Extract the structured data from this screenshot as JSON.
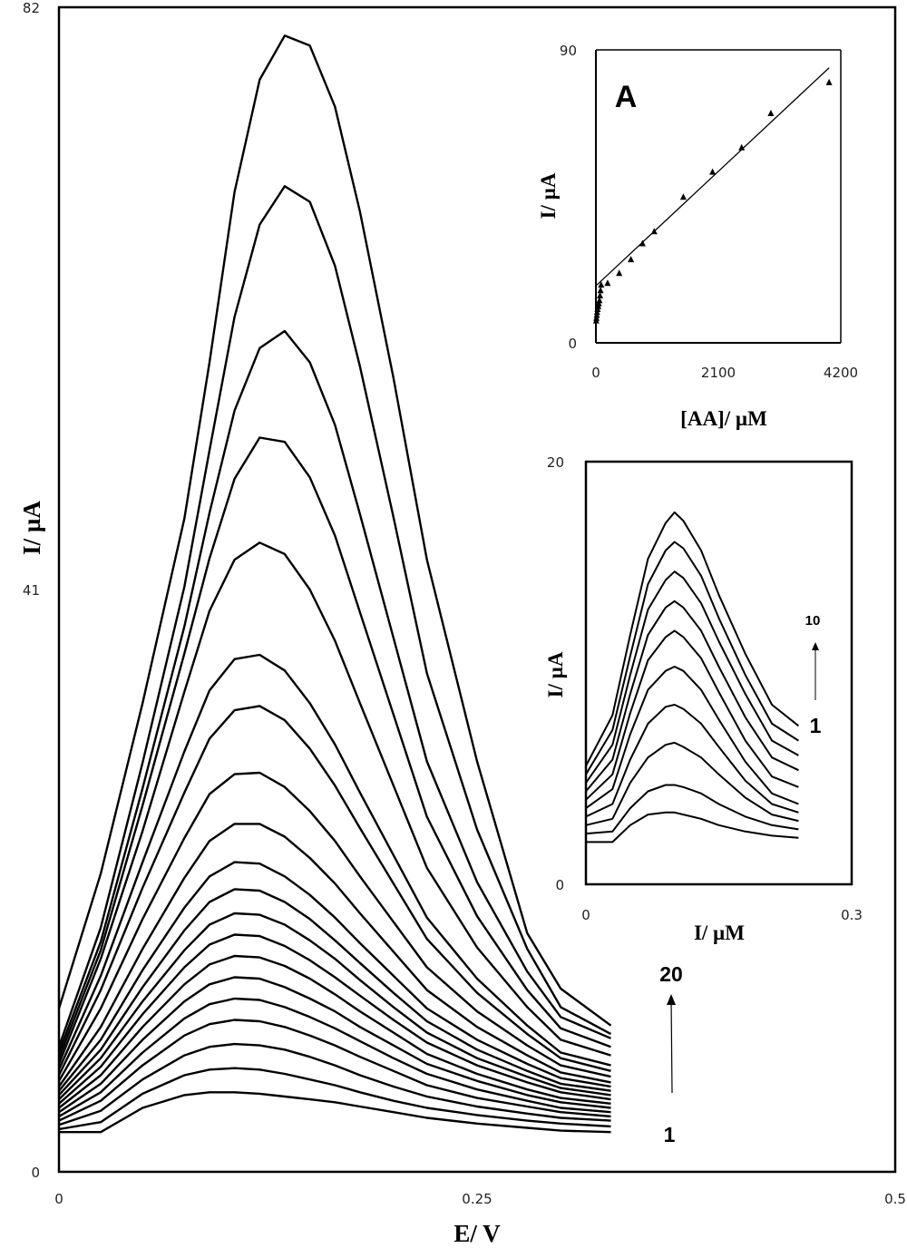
{
  "chart_data": [
    {
      "type": "line",
      "id": "main",
      "xlabel": "E/ V",
      "ylabel": "I/ µA",
      "xlim": [
        0,
        0.5
      ],
      "ylim": [
        0,
        82
      ],
      "xticks": [
        "0",
        "0.25",
        "0.5"
      ],
      "yticks": [
        "0",
        "41",
        "82"
      ],
      "annotations": {
        "first": "1",
        "last": "20"
      },
      "x": [
        0,
        0.025,
        0.05,
        0.075,
        0.09,
        0.105,
        0.12,
        0.135,
        0.15,
        0.165,
        0.18,
        0.2,
        0.22,
        0.25,
        0.28,
        0.3,
        0.33
      ],
      "series": [
        {
          "values": [
            2.8,
            2.8,
            4.5,
            5.4,
            5.6,
            5.6,
            5.5,
            5.3,
            5.1,
            4.9,
            4.6,
            4.2,
            3.8,
            3.4,
            3.1,
            2.9,
            2.8
          ]
        },
        {
          "values": [
            3.0,
            3.5,
            5.5,
            6.8,
            7.2,
            7.3,
            7.2,
            6.9,
            6.5,
            6.1,
            5.6,
            5.0,
            4.5,
            4.0,
            3.6,
            3.4,
            3.2
          ]
        },
        {
          "values": [
            3.3,
            4.3,
            6.5,
            8.2,
            8.8,
            9.0,
            8.9,
            8.6,
            8.1,
            7.5,
            6.8,
            6.0,
            5.3,
            4.6,
            4.1,
            3.8,
            3.6
          ]
        },
        {
          "values": [
            3.6,
            5.0,
            7.5,
            9.6,
            10.4,
            10.7,
            10.6,
            10.2,
            9.6,
            8.9,
            8.1,
            7.1,
            6.1,
            5.2,
            4.6,
            4.2,
            3.9
          ]
        },
        {
          "values": [
            3.9,
            5.6,
            8.4,
            10.8,
            11.8,
            12.2,
            12.1,
            11.6,
            10.9,
            10.1,
            9.2,
            8.0,
            6.9,
            5.8,
            5.0,
            4.5,
            4.2
          ]
        },
        {
          "values": [
            4.2,
            6.2,
            9.3,
            12.0,
            13.2,
            13.7,
            13.6,
            13.0,
            12.2,
            11.3,
            10.2,
            8.9,
            7.6,
            6.4,
            5.4,
            4.9,
            4.5
          ]
        },
        {
          "values": [
            4.5,
            6.8,
            10.2,
            13.2,
            14.6,
            15.2,
            15.1,
            14.5,
            13.6,
            12.5,
            11.3,
            9.8,
            8.3,
            6.9,
            5.8,
            5.2,
            4.8
          ]
        },
        {
          "values": [
            4.8,
            7.4,
            11.1,
            14.4,
            16.0,
            16.7,
            16.6,
            15.9,
            14.9,
            13.7,
            12.4,
            10.7,
            9.1,
            7.5,
            6.3,
            5.6,
            5.1
          ]
        },
        {
          "values": [
            5.1,
            8.0,
            12.0,
            15.6,
            17.4,
            18.2,
            18.1,
            17.4,
            16.3,
            15.0,
            13.5,
            11.6,
            9.8,
            8.0,
            6.7,
            5.9,
            5.4
          ]
        },
        {
          "values": [
            5.4,
            8.6,
            13.0,
            17.0,
            19.0,
            19.9,
            19.8,
            19.0,
            17.8,
            16.3,
            14.7,
            12.6,
            10.6,
            8.6,
            7.1,
            6.2,
            5.7
          ]
        },
        {
          "values": [
            5.7,
            9.3,
            14.2,
            18.6,
            20.8,
            21.8,
            21.7,
            20.8,
            19.5,
            17.9,
            16.1,
            13.8,
            11.5,
            9.3,
            7.6,
            6.6,
            6.0
          ]
        },
        {
          "values": [
            6.0,
            10.2,
            15.7,
            20.7,
            23.3,
            24.5,
            24.5,
            23.6,
            22.1,
            20.3,
            18.2,
            15.5,
            12.8,
            10.2,
            8.2,
            7.0,
            6.3
          ]
        },
        {
          "values": [
            6.4,
            11.5,
            17.8,
            23.5,
            26.6,
            28.0,
            28.1,
            27.1,
            25.4,
            23.3,
            20.8,
            17.6,
            14.4,
            11.3,
            8.9,
            7.5,
            6.7
          ]
        },
        {
          "values": [
            6.8,
            12.8,
            20.0,
            26.7,
            30.5,
            32.5,
            32.8,
            31.8,
            29.8,
            27.2,
            24.2,
            20.3,
            16.4,
            12.6,
            9.7,
            8.0,
            7.1
          ]
        },
        {
          "values": [
            7.2,
            13.8,
            21.8,
            29.6,
            33.9,
            36.1,
            36.4,
            35.3,
            33.0,
            30.1,
            26.7,
            22.3,
            17.9,
            13.6,
            10.3,
            8.4,
            7.5
          ]
        },
        {
          "values": [
            7.6,
            15.0,
            24.0,
            33.8,
            39.5,
            43.1,
            44.3,
            43.5,
            41.0,
            37.4,
            33.0,
            27.2,
            21.4,
            15.8,
            11.6,
            9.3,
            8.2
          ]
        },
        {
          "values": [
            8.0,
            15.6,
            25.8,
            36.5,
            43.2,
            48.8,
            51.7,
            51.4,
            48.9,
            44.8,
            39.4,
            32.2,
            25.0,
            18.0,
            12.8,
            10.1,
            8.8
          ]
        },
        {
          "values": [
            8.4,
            16.2,
            27.0,
            38.4,
            46.4,
            53.6,
            58.0,
            59.2,
            57.0,
            52.6,
            46.3,
            37.6,
            28.9,
            20.4,
            14.1,
            10.9,
            9.4
          ]
        },
        {
          "values": [
            8.8,
            17.2,
            28.8,
            41.2,
            50.8,
            60.2,
            66.7,
            69.4,
            68.3,
            63.8,
            56.7,
            46.1,
            35.1,
            24.1,
            15.7,
            11.6,
            9.7
          ]
        },
        {
          "values": [
            11.5,
            21.0,
            33.0,
            46.0,
            57.0,
            69.0,
            76.9,
            80.0,
            79.3,
            75.0,
            67.6,
            55.9,
            43.1,
            28.9,
            16.8,
            12.9,
            10.3
          ]
        }
      ]
    },
    {
      "type": "scatter",
      "id": "inset_a",
      "panel_label": "A",
      "xlabel": "[AA]/ µM",
      "ylabel": "I/ µA",
      "xlim": [
        0,
        4200
      ],
      "ylim": [
        0,
        90
      ],
      "xticks": [
        "0",
        "2100",
        "4200"
      ],
      "yticks": [
        "0",
        "90"
      ],
      "points": [
        [
          5,
          6.8
        ],
        [
          10,
          7.6
        ],
        [
          15,
          8.5
        ],
        [
          20,
          9.4
        ],
        [
          30,
          10.3
        ],
        [
          40,
          11.2
        ],
        [
          50,
          12.1
        ],
        [
          60,
          13.0
        ],
        [
          70,
          14.5
        ],
        [
          80,
          16.1
        ],
        [
          90,
          17.8
        ],
        [
          200,
          18.3
        ],
        [
          400,
          21.4
        ],
        [
          600,
          25.6
        ],
        [
          800,
          30.5
        ],
        [
          1000,
          34.2
        ],
        [
          1500,
          44.8
        ],
        [
          2000,
          52.5
        ],
        [
          2500,
          60.0
        ],
        [
          3000,
          70.5
        ],
        [
          4000,
          80.0
        ]
      ],
      "fit_line": {
        "x": [
          0,
          4000
        ],
        "y": [
          17.5,
          84.5
        ]
      }
    },
    {
      "type": "line",
      "id": "inset_b",
      "xlabel": "I/ µM",
      "ylabel": "I/ µA",
      "xlim": [
        0,
        0.3
      ],
      "ylim": [
        0,
        20
      ],
      "xticks": [
        "0",
        "0.3"
      ],
      "yticks": [
        "0",
        "20"
      ],
      "annotations": {
        "first": "1",
        "last": "10"
      },
      "x": [
        0,
        0.03,
        0.05,
        0.07,
        0.09,
        0.1,
        0.11,
        0.13,
        0.15,
        0.18,
        0.21,
        0.24
      ],
      "series": [
        {
          "values": [
            2.0,
            2.0,
            2.8,
            3.3,
            3.4,
            3.4,
            3.3,
            3.1,
            2.8,
            2.5,
            2.3,
            2.2
          ]
        },
        {
          "values": [
            2.4,
            2.5,
            3.6,
            4.4,
            4.7,
            4.7,
            4.6,
            4.3,
            3.8,
            3.2,
            2.8,
            2.6
          ]
        },
        {
          "values": [
            2.8,
            3.1,
            4.8,
            6.0,
            6.6,
            6.7,
            6.5,
            6.0,
            5.2,
            4.1,
            3.3,
            3.0
          ]
        },
        {
          "values": [
            3.2,
            3.8,
            5.9,
            7.6,
            8.4,
            8.5,
            8.3,
            7.6,
            6.5,
            4.9,
            3.8,
            3.4
          ]
        },
        {
          "values": [
            3.6,
            4.5,
            7.1,
            9.2,
            10.1,
            10.3,
            10.1,
            9.2,
            7.8,
            5.8,
            4.3,
            3.8
          ]
        },
        {
          "values": [
            4.0,
            5.2,
            8.1,
            10.6,
            11.7,
            12.0,
            11.7,
            10.7,
            9.1,
            6.8,
            5.1,
            4.6
          ]
        },
        {
          "values": [
            4.4,
            5.9,
            9.0,
            11.8,
            13.1,
            13.4,
            13.1,
            12.0,
            10.3,
            7.9,
            6.0,
            5.4
          ]
        },
        {
          "values": [
            4.8,
            6.6,
            9.9,
            13.0,
            14.4,
            14.8,
            14.5,
            13.3,
            11.5,
            9.0,
            6.8,
            6.1
          ]
        },
        {
          "values": [
            5.2,
            7.3,
            10.8,
            14.2,
            15.8,
            16.2,
            15.9,
            14.6,
            12.6,
            9.9,
            7.6,
            6.8
          ]
        },
        {
          "values": [
            5.6,
            8.0,
            11.8,
            15.4,
            17.1,
            17.6,
            17.2,
            15.8,
            13.7,
            10.9,
            8.5,
            7.5
          ]
        }
      ]
    }
  ]
}
